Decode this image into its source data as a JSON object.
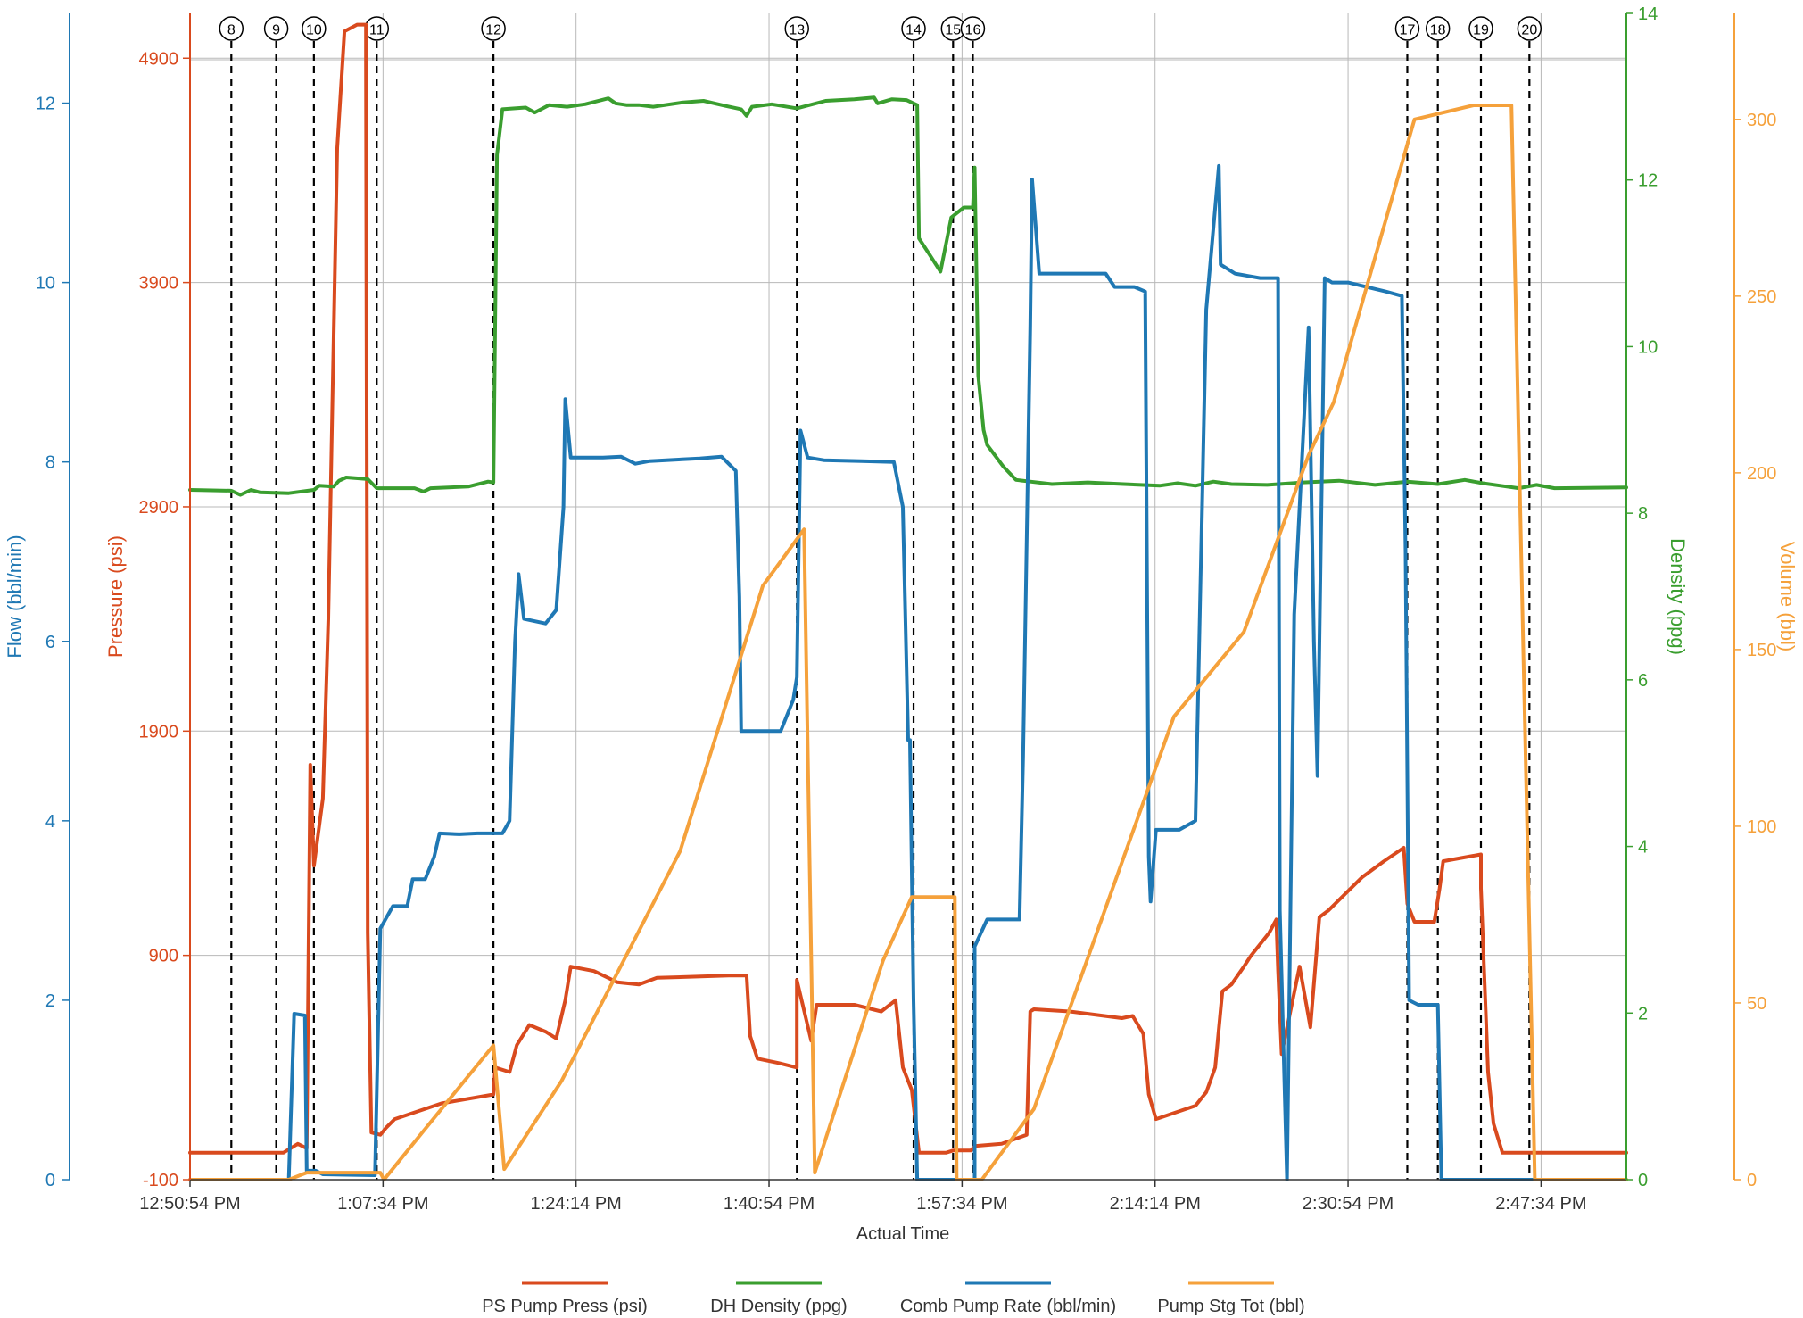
{
  "chart_data": {
    "type": "line",
    "title": "",
    "xlabel": "Actual Time",
    "x_tick_labels": [
      "12:50:54 PM",
      "1:07:34 PM",
      "1:24:14 PM",
      "1:40:54 PM",
      "1:57:34 PM",
      "2:14:14 PM",
      "2:30:54 PM",
      "2:47:34 PM"
    ],
    "grid": true,
    "legend_position": "bottom",
    "axes": {
      "flow": {
        "label": "Flow (bbl/min)",
        "side": "left-outer",
        "range": [
          0,
          13
        ],
        "ticks": [
          "0",
          "2",
          "4",
          "6",
          "8",
          "10",
          "12"
        ],
        "color": "#1f78b4"
      },
      "pressure": {
        "label": "Pressure (psi)",
        "side": "left-inner",
        "range": [
          -100,
          5100
        ],
        "ticks": [
          "-100",
          "900",
          "1900",
          "2900",
          "3900",
          "4900"
        ],
        "color": "#d94a1e"
      },
      "density": {
        "label": "Density (ppg)",
        "side": "right-inner",
        "range": [
          0,
          14
        ],
        "ticks": [
          "0",
          "2",
          "4",
          "6",
          "8",
          "10",
          "12",
          "14"
        ],
        "color": "#3a9e2f"
      },
      "volume": {
        "label": "Volume (bbl)",
        "side": "right-outer",
        "range": [
          0,
          330
        ],
        "ticks": [
          "0",
          "50",
          "100",
          "150",
          "200",
          "250",
          "300"
        ],
        "color": "#f5a13b"
      }
    },
    "events": [
      "8",
      "9",
      "10",
      "11",
      "12",
      "13",
      "14",
      "15",
      "16",
      "17",
      "18",
      "19",
      "20"
    ],
    "event_times_min": [
      2.3,
      4.8,
      6.9,
      10.4,
      16.9,
      33.8,
      40.3,
      42.5,
      43.6,
      67.8,
      69.5,
      71.9,
      74.6
    ],
    "series": [
      {
        "name": "PS Pump Press (psi)",
        "axis": "pressure",
        "color": "#d94a1e",
        "points": [
          [
            0,
            20
          ],
          [
            5.2,
            20
          ],
          [
            6,
            60
          ],
          [
            6.5,
            40
          ],
          [
            6.7,
            1750
          ],
          [
            6.9,
            1300
          ],
          [
            7.4,
            1600
          ],
          [
            7.7,
            2400
          ],
          [
            8.2,
            4500
          ],
          [
            8.6,
            5020
          ],
          [
            9.3,
            5050
          ],
          [
            9.8,
            5050
          ],
          [
            9.8,
            4900
          ],
          [
            9.9,
            1000
          ],
          [
            10.1,
            110
          ],
          [
            10.6,
            100
          ],
          [
            10.9,
            130
          ],
          [
            11.4,
            170
          ],
          [
            14,
            240
          ],
          [
            16.9,
            280
          ],
          [
            17,
            400
          ],
          [
            17.8,
            380
          ],
          [
            18.2,
            500
          ],
          [
            18.9,
            590
          ],
          [
            19.8,
            560
          ],
          [
            20.4,
            530
          ],
          [
            20.9,
            700
          ],
          [
            21.2,
            850
          ],
          [
            22.5,
            830
          ],
          [
            23.8,
            780
          ],
          [
            25,
            770
          ],
          [
            26,
            800
          ],
          [
            30,
            810
          ],
          [
            31,
            810
          ],
          [
            31.2,
            540
          ],
          [
            31.6,
            440
          ],
          [
            32.8,
            420
          ],
          [
            33.8,
            400
          ],
          [
            33.8,
            790
          ],
          [
            34.6,
            520
          ],
          [
            34.9,
            680
          ],
          [
            37,
            680
          ],
          [
            38.5,
            650
          ],
          [
            39.3,
            700
          ],
          [
            39.7,
            400
          ],
          [
            40.2,
            300
          ],
          [
            40.6,
            20
          ],
          [
            42.1,
            20
          ],
          [
            42.5,
            30
          ],
          [
            43.5,
            30
          ],
          [
            43.7,
            50
          ],
          [
            45.2,
            60
          ],
          [
            46.6,
            100
          ],
          [
            46.8,
            650
          ],
          [
            47,
            660
          ],
          [
            49,
            650
          ],
          [
            51.9,
            620
          ],
          [
            52.5,
            630
          ],
          [
            53.1,
            550
          ],
          [
            53.4,
            280
          ],
          [
            53.8,
            170
          ],
          [
            54.9,
            200
          ],
          [
            56,
            230
          ],
          [
            56.6,
            290
          ],
          [
            57.1,
            400
          ],
          [
            57.5,
            740
          ],
          [
            58,
            770
          ],
          [
            58.7,
            850
          ],
          [
            59.1,
            900
          ],
          [
            60.1,
            1000
          ],
          [
            60.5,
            1060
          ],
          [
            60.6,
            830
          ],
          [
            60.8,
            460
          ],
          [
            61.8,
            850
          ],
          [
            62.4,
            580
          ],
          [
            62.9,
            1070
          ],
          [
            63.4,
            1100
          ],
          [
            65.3,
            1250
          ],
          [
            66.5,
            1320
          ],
          [
            67.6,
            1380
          ],
          [
            67.8,
            1130
          ],
          [
            68.2,
            1050
          ],
          [
            68.9,
            1050
          ],
          [
            69.3,
            1050
          ],
          [
            69.6,
            1200
          ],
          [
            69.8,
            1320
          ],
          [
            71.9,
            1350
          ],
          [
            71.9,
            1200
          ],
          [
            72.3,
            380
          ],
          [
            72.6,
            150
          ],
          [
            73.1,
            20
          ],
          [
            80,
            20
          ]
        ]
      },
      {
        "name": "DH Density (ppg)",
        "axis": "density",
        "color": "#3a9e2f",
        "points": [
          [
            0,
            8.28
          ],
          [
            2.3,
            8.27
          ],
          [
            2.8,
            8.22
          ],
          [
            3.4,
            8.28
          ],
          [
            3.9,
            8.25
          ],
          [
            5.5,
            8.24
          ],
          [
            6.9,
            8.28
          ],
          [
            7.2,
            8.33
          ],
          [
            8,
            8.32
          ],
          [
            8.3,
            8.39
          ],
          [
            8.7,
            8.43
          ],
          [
            9.9,
            8.41
          ],
          [
            10.4,
            8.3
          ],
          [
            12.5,
            8.3
          ],
          [
            13,
            8.26
          ],
          [
            13.4,
            8.3
          ],
          [
            15.5,
            8.32
          ],
          [
            16.6,
            8.38
          ],
          [
            16.9,
            8.37
          ],
          [
            17.1,
            12.3
          ],
          [
            17.4,
            12.85
          ],
          [
            18.7,
            12.87
          ],
          [
            19.2,
            12.81
          ],
          [
            20,
            12.9
          ],
          [
            21,
            12.88
          ],
          [
            22,
            12.91
          ],
          [
            23.3,
            12.98
          ],
          [
            23.7,
            12.92
          ],
          [
            24.3,
            12.9
          ],
          [
            25,
            12.9
          ],
          [
            25.8,
            12.88
          ],
          [
            27.4,
            12.93
          ],
          [
            28.6,
            12.95
          ],
          [
            29.8,
            12.89
          ],
          [
            30.7,
            12.85
          ],
          [
            31,
            12.77
          ],
          [
            31.3,
            12.88
          ],
          [
            32.4,
            12.91
          ],
          [
            33.8,
            12.86
          ],
          [
            35.4,
            12.95
          ],
          [
            37,
            12.97
          ],
          [
            38.1,
            12.99
          ],
          [
            38.3,
            12.92
          ],
          [
            39.1,
            12.97
          ],
          [
            39.9,
            12.96
          ],
          [
            40.5,
            12.9
          ],
          [
            40.6,
            11.3
          ],
          [
            41.2,
            11.1
          ],
          [
            41.8,
            10.9
          ],
          [
            42.4,
            11.55
          ],
          [
            43.1,
            11.67
          ],
          [
            43.6,
            11.67
          ],
          [
            43.7,
            12.15
          ],
          [
            43.9,
            9.65
          ],
          [
            44.2,
            9.0
          ],
          [
            44.4,
            8.82
          ],
          [
            45.3,
            8.56
          ],
          [
            46,
            8.4
          ],
          [
            46.8,
            8.38
          ],
          [
            48,
            8.35
          ],
          [
            50,
            8.37
          ],
          [
            52,
            8.35
          ],
          [
            54,
            8.33
          ],
          [
            55,
            8.36
          ],
          [
            56,
            8.33
          ],
          [
            57,
            8.38
          ],
          [
            58,
            8.35
          ],
          [
            60,
            8.34
          ],
          [
            62,
            8.37
          ],
          [
            64,
            8.39
          ],
          [
            66,
            8.34
          ],
          [
            67.8,
            8.38
          ],
          [
            69.5,
            8.35
          ],
          [
            71,
            8.4
          ],
          [
            72,
            8.36
          ],
          [
            73,
            8.33
          ],
          [
            74,
            8.3
          ],
          [
            75,
            8.34
          ],
          [
            76,
            8.3
          ],
          [
            80,
            8.31
          ]
        ]
      },
      {
        "name": "Comb Pump Rate (bbl/min)",
        "axis": "flow",
        "color": "#1f78b4",
        "points": [
          [
            0,
            0
          ],
          [
            5.5,
            0
          ],
          [
            5.8,
            1.85
          ],
          [
            6.4,
            1.83
          ],
          [
            6.5,
            0.1
          ],
          [
            7,
            0.1
          ],
          [
            7.4,
            0.06
          ],
          [
            10.3,
            0.05
          ],
          [
            10.6,
            2.8
          ],
          [
            11.3,
            3.05
          ],
          [
            12.1,
            3.05
          ],
          [
            12.4,
            3.35
          ],
          [
            13.1,
            3.35
          ],
          [
            13.6,
            3.6
          ],
          [
            13.9,
            3.86
          ],
          [
            15,
            3.85
          ],
          [
            16,
            3.86
          ],
          [
            17.4,
            3.86
          ],
          [
            17.8,
            4
          ],
          [
            18.1,
            6.0
          ],
          [
            18.3,
            6.75
          ],
          [
            18.6,
            6.25
          ],
          [
            19.8,
            6.2
          ],
          [
            20.4,
            6.35
          ],
          [
            20.8,
            7.5
          ],
          [
            20.9,
            8.7
          ],
          [
            21.2,
            8.05
          ],
          [
            23,
            8.05
          ],
          [
            24,
            8.06
          ],
          [
            24.8,
            7.98
          ],
          [
            25.6,
            8.01
          ],
          [
            28.4,
            8.04
          ],
          [
            29.6,
            8.06
          ],
          [
            30.4,
            7.9
          ],
          [
            30.6,
            6.5
          ],
          [
            30.7,
            5.0
          ],
          [
            31.2,
            5.0
          ],
          [
            32.9,
            5.0
          ],
          [
            33.6,
            5.35
          ],
          [
            33.8,
            5.6
          ],
          [
            34,
            8.35
          ],
          [
            34.4,
            8.05
          ],
          [
            35.3,
            8.02
          ],
          [
            37.4,
            8.01
          ],
          [
            39.2,
            8.0
          ],
          [
            39.7,
            7.5
          ],
          [
            40,
            4.9
          ],
          [
            40.1,
            4.9
          ],
          [
            40.3,
            2.0
          ],
          [
            40.5,
            0
          ],
          [
            41.7,
            0
          ],
          [
            42.1,
            0
          ],
          [
            43.7,
            0
          ],
          [
            43.7,
            2.6
          ],
          [
            44.4,
            2.9
          ],
          [
            46.2,
            2.9
          ],
          [
            46.4,
            4.7
          ],
          [
            46.8,
            9.5
          ],
          [
            46.9,
            11.15
          ],
          [
            47.3,
            10.1
          ],
          [
            49,
            10.1
          ],
          [
            51,
            10.1
          ],
          [
            51.5,
            9.95
          ],
          [
            52.6,
            9.95
          ],
          [
            53.2,
            9.9
          ],
          [
            53.4,
            3.6
          ],
          [
            53.5,
            3.1
          ],
          [
            53.8,
            3.9
          ],
          [
            55.1,
            3.9
          ],
          [
            56,
            4.0
          ],
          [
            56.6,
            9.7
          ],
          [
            57.3,
            11.3
          ],
          [
            57.4,
            10.2
          ],
          [
            58.2,
            10.1
          ],
          [
            59.6,
            10.05
          ],
          [
            60.6,
            10.05
          ],
          [
            60.7,
            3.0
          ],
          [
            61.1,
            0
          ],
          [
            61.5,
            6.3
          ],
          [
            62.3,
            9.5
          ],
          [
            62.6,
            6.0
          ],
          [
            62.8,
            4.5
          ],
          [
            63.2,
            10.05
          ],
          [
            63.6,
            10.0
          ],
          [
            64.5,
            10.0
          ],
          [
            66.6,
            9.9
          ],
          [
            67.5,
            9.85
          ],
          [
            67.7,
            7.0
          ],
          [
            67.9,
            2.0
          ],
          [
            68.4,
            1.95
          ],
          [
            69.5,
            1.95
          ],
          [
            69.7,
            0
          ],
          [
            72,
            0
          ],
          [
            80,
            0
          ]
        ]
      },
      {
        "name": "Pump Stg Tot (bbl)",
        "axis": "volume",
        "color": "#f5a13b",
        "points": [
          [
            0,
            0
          ],
          [
            5.5,
            0
          ],
          [
            6.5,
            2
          ],
          [
            10.6,
            2
          ],
          [
            10.8,
            0
          ],
          [
            13.2,
            15
          ],
          [
            16.9,
            38
          ],
          [
            17.5,
            3
          ],
          [
            20.7,
            28
          ],
          [
            27.3,
            93
          ],
          [
            31.9,
            168
          ],
          [
            34.2,
            184
          ],
          [
            34.8,
            2
          ],
          [
            38.6,
            62
          ],
          [
            40.2,
            80
          ],
          [
            42.6,
            80
          ],
          [
            42.7,
            0
          ],
          [
            44.1,
            0
          ],
          [
            47,
            20
          ],
          [
            54.8,
            131
          ],
          [
            58.7,
            155
          ],
          [
            62.3,
            205
          ],
          [
            63.7,
            220
          ],
          [
            68.2,
            300
          ],
          [
            71.5,
            304
          ],
          [
            73.6,
            304
          ],
          [
            74.9,
            0
          ],
          [
            80,
            0
          ]
        ]
      }
    ]
  }
}
